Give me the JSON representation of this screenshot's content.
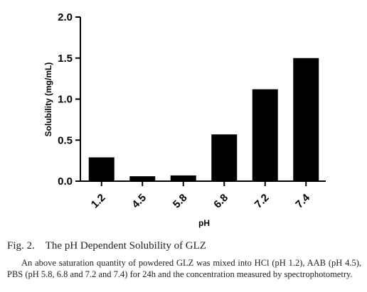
{
  "chart_data": {
    "type": "bar",
    "categories": [
      "1.2",
      "4.5",
      "5.8",
      "6.8",
      "7.2",
      "7.4"
    ],
    "values": [
      0.29,
      0.06,
      0.07,
      0.57,
      1.12,
      1.5
    ],
    "xlabel": "pH",
    "ylabel": "Solubility (mg/mL)",
    "ylim": [
      0,
      2.0
    ],
    "yticks": [
      "0.0",
      "0.5",
      "1.0",
      "1.5",
      "2.0"
    ],
    "grid": false,
    "bar_color": "#000000"
  },
  "caption": {
    "title": "Fig. 2. The pH Dependent Solubility of GLZ",
    "body": "An above saturation quantity of powdered GLZ was mixed into HCl (pH 1.2), AAB (pH 4.5), PBS (pH 5.8, 6.8 and 7.2 and 7.4) for 24h and the concentration measured by spectrophotometry."
  }
}
